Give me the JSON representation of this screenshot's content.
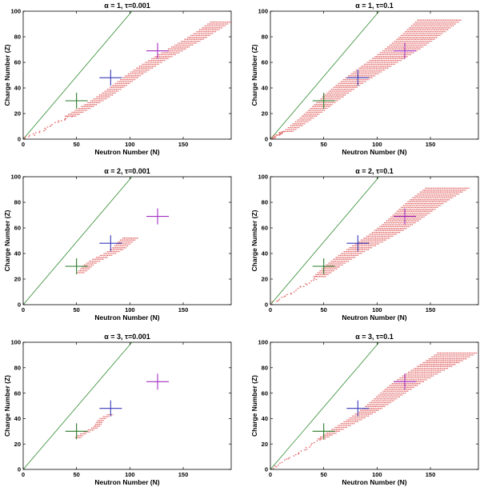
{
  "chart_data": [
    {
      "type": "scatter",
      "title": "α = 1, τ=0.001",
      "xlabel": "Neutron Number (N)",
      "ylabel": "Charge Number (Z)",
      "xlim": [
        0,
        195
      ],
      "ylim": [
        0,
        100
      ],
      "xticks": [
        0,
        50,
        100,
        150
      ],
      "yticks": [
        0,
        20,
        40,
        60,
        80,
        100
      ],
      "x_tick_labels": [
        "0",
        "50",
        "100",
        "150"
      ],
      "y_tick_labels": [
        "0",
        "20",
        "40",
        "60",
        "80",
        "100"
      ],
      "band": {
        "z_range": [
          18,
          92
        ],
        "nmin_at_zmin": 39,
        "nmin_at_zmax": 175,
        "nmax_at_zmin": 50,
        "nmax_at_zmax": 195,
        "scatter_trail": {
          "z": [
            0,
            18
          ],
          "n": [
            0,
            45
          ]
        }
      },
      "stability_line": {
        "x": [
          0,
          102
        ],
        "y": [
          0,
          100
        ]
      },
      "markers": [
        {
          "name": "N=50, Z=30",
          "x": 50,
          "y": 30,
          "color": "#2a7a2a"
        },
        {
          "name": "N=82, Z=48",
          "x": 82,
          "y": 48,
          "color": "#3a3ab8"
        },
        {
          "name": "N=126, Z=69",
          "x": 126,
          "y": 69,
          "color": "#a030c0"
        }
      ]
    },
    {
      "type": "scatter",
      "title": "α = 1, τ=0.1",
      "xlabel": "Neutron Number (N)",
      "ylabel": "Charge Number (Z)",
      "xlim": [
        0,
        195
      ],
      "ylim": [
        0,
        100
      ],
      "xticks": [
        0,
        50,
        100,
        150
      ],
      "yticks": [
        0,
        20,
        40,
        60,
        80,
        100
      ],
      "x_tick_labels": [
        "0",
        "50",
        "100",
        "150"
      ],
      "y_tick_labels": [
        "0",
        "20",
        "40",
        "60",
        "80",
        "100"
      ],
      "band": {
        "z_range": [
          6,
          94
        ],
        "nmin_at_zmin": 10,
        "nmin_at_zmax": 140,
        "nmax_at_zmin": 20,
        "nmax_at_zmax": 182,
        "scatter_trail": {
          "z": [
            0,
            6
          ],
          "n": [
            0,
            12
          ]
        }
      },
      "stability_line": {
        "x": [
          0,
          102
        ],
        "y": [
          0,
          100
        ]
      },
      "markers": [
        {
          "name": "N=50, Z=30",
          "x": 50,
          "y": 30,
          "color": "#2a7a2a"
        },
        {
          "name": "N=82, Z=48",
          "x": 82,
          "y": 48,
          "color": "#3a3ab8"
        },
        {
          "name": "N=126, Z=69",
          "x": 126,
          "y": 69,
          "color": "#a030c0"
        }
      ]
    },
    {
      "type": "scatter",
      "title": "α = 2, τ=0.001",
      "xlabel": "Neutron Number (N)",
      "ylabel": "Charge Number (Z)",
      "xlim": [
        0,
        195
      ],
      "ylim": [
        0,
        100
      ],
      "xticks": [
        0,
        50,
        100,
        150
      ],
      "yticks": [
        0,
        20,
        40,
        60,
        80,
        100
      ],
      "x_tick_labels": [
        "0",
        "50",
        "100",
        "150"
      ],
      "y_tick_labels": [
        "0",
        "20",
        "40",
        "60",
        "80",
        "100"
      ],
      "band": {
        "z_range": [
          25,
          52
        ],
        "nmin_at_zmin": 48,
        "nmin_at_zmax": 95,
        "nmax_at_zmin": 56,
        "nmax_at_zmax": 110,
        "scatter_trail": null
      },
      "stability_line": {
        "x": [
          0,
          102
        ],
        "y": [
          0,
          100
        ]
      },
      "markers": [
        {
          "name": "N=50, Z=30",
          "x": 50,
          "y": 30,
          "color": "#2a7a2a"
        },
        {
          "name": "N=82, Z=48",
          "x": 82,
          "y": 48,
          "color": "#3a3ab8"
        },
        {
          "name": "N=126, Z=69",
          "x": 126,
          "y": 69,
          "color": "#a030c0"
        }
      ]
    },
    {
      "type": "scatter",
      "title": "α = 2, τ=0.1",
      "xlabel": "Neutron Number (N)",
      "ylabel": "Charge Number (Z)",
      "xlim": [
        0,
        195
      ],
      "ylim": [
        0,
        100
      ],
      "xticks": [
        0,
        50,
        100,
        150
      ],
      "yticks": [
        0,
        20,
        40,
        60,
        80,
        100
      ],
      "x_tick_labels": [
        "0",
        "50",
        "100",
        "150"
      ],
      "y_tick_labels": [
        "0",
        "20",
        "40",
        "60",
        "80",
        "100"
      ],
      "band": {
        "z_range": [
          22,
          92
        ],
        "nmin_at_zmin": 40,
        "nmin_at_zmax": 148,
        "nmax_at_zmin": 52,
        "nmax_at_zmax": 190,
        "scatter_trail": {
          "z": [
            0,
            22
          ],
          "n": [
            0,
            45
          ]
        }
      },
      "stability_line": {
        "x": [
          0,
          102
        ],
        "y": [
          0,
          100
        ]
      },
      "markers": [
        {
          "name": "N=50, Z=30",
          "x": 50,
          "y": 30,
          "color": "#2a7a2a"
        },
        {
          "name": "N=82, Z=48",
          "x": 82,
          "y": 48,
          "color": "#3a3ab8"
        },
        {
          "name": "N=126, Z=69",
          "x": 126,
          "y": 69,
          "color": "#a030c0"
        }
      ]
    },
    {
      "type": "scatter",
      "title": "α = 3, τ=0.001",
      "xlabel": "Neutron Number (N)",
      "ylabel": "Charge Number (Z)",
      "xlim": [
        0,
        195
      ],
      "ylim": [
        0,
        100
      ],
      "xticks": [
        0,
        50,
        100,
        150
      ],
      "yticks": [
        0,
        20,
        40,
        60,
        80,
        100
      ],
      "x_tick_labels": [
        "0",
        "50",
        "100",
        "150"
      ],
      "y_tick_labels": [
        "0",
        "20",
        "40",
        "60",
        "80",
        "100"
      ],
      "band": {
        "z_range": [
          25,
          44
        ],
        "nmin_at_zmin": 50,
        "nmin_at_zmax": 80,
        "nmax_at_zmin": 56,
        "nmax_at_zmax": 86,
        "scatter_trail": null
      },
      "stability_line": {
        "x": [
          0,
          102
        ],
        "y": [
          0,
          100
        ]
      },
      "markers": [
        {
          "name": "N=50, Z=30",
          "x": 50,
          "y": 30,
          "color": "#2a7a2a"
        },
        {
          "name": "N=82, Z=48",
          "x": 82,
          "y": 48,
          "color": "#3a3ab8"
        },
        {
          "name": "N=126, Z=69",
          "x": 126,
          "y": 69,
          "color": "#a030c0"
        }
      ]
    },
    {
      "type": "scatter",
      "title": "α = 3, τ=0.1",
      "xlabel": "Neutron Number (N)",
      "ylabel": "Charge Number (Z)",
      "xlim": [
        0,
        195
      ],
      "ylim": [
        0,
        100
      ],
      "xticks": [
        0,
        50,
        100,
        150
      ],
      "yticks": [
        0,
        20,
        40,
        60,
        80,
        100
      ],
      "x_tick_labels": [
        "0",
        "50",
        "100",
        "150"
      ],
      "y_tick_labels": [
        "0",
        "20",
        "40",
        "60",
        "80",
        "100"
      ],
      "band": {
        "z_range": [
          24,
          92
        ],
        "nmin_at_zmin": 46,
        "nmin_at_zmax": 155,
        "nmax_at_zmin": 54,
        "nmax_at_zmax": 193,
        "scatter_trail": {
          "z": [
            0,
            24
          ],
          "n": [
            0,
            48
          ]
        }
      },
      "stability_line": {
        "x": [
          0,
          102
        ],
        "y": [
          0,
          100
        ]
      },
      "markers": [
        {
          "name": "N=50, Z=30",
          "x": 50,
          "y": 30,
          "color": "#2a7a2a"
        },
        {
          "name": "N=82, Z=48",
          "x": 82,
          "y": 48,
          "color": "#3a3ab8"
        },
        {
          "name": "N=126, Z=69",
          "x": 126,
          "y": 69,
          "color": "#a030c0"
        }
      ]
    }
  ],
  "colors": {
    "band": "#e05a5a",
    "band_stroke": "#c84848",
    "stability_line": "#2e8b2e",
    "axis": "#000000"
  }
}
